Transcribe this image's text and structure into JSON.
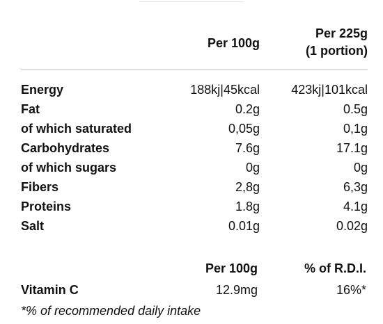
{
  "table": {
    "header": [
      "Per 100g",
      "Per 225g",
      "(1 portion)"
    ],
    "rows": [
      [
        "Energy",
        "188kj|45kcal",
        "423kj|101kcal"
      ],
      [
        "Fat",
        "0.2g",
        "0.5g"
      ],
      [
        "of which saturated",
        "0,05g",
        "0,1g"
      ],
      [
        "Carbohydrates",
        "7.6g",
        "17.1g"
      ],
      [
        "of which sugars",
        "0g",
        "0g"
      ],
      [
        "Fibers",
        "2,8g",
        "6,3g"
      ],
      [
        "Proteins",
        "1.8g",
        "4.1g"
      ],
      [
        "Salt",
        "0.01g",
        "0.02g"
      ]
    ]
  },
  "vitamins": {
    "header": [
      "Per 100g",
      "% of R.D.I."
    ],
    "rows": [
      [
        "Vitamin C",
        "12.9mg",
        "16%*"
      ]
    ],
    "footnote": "*% of recommended daily intake"
  }
}
